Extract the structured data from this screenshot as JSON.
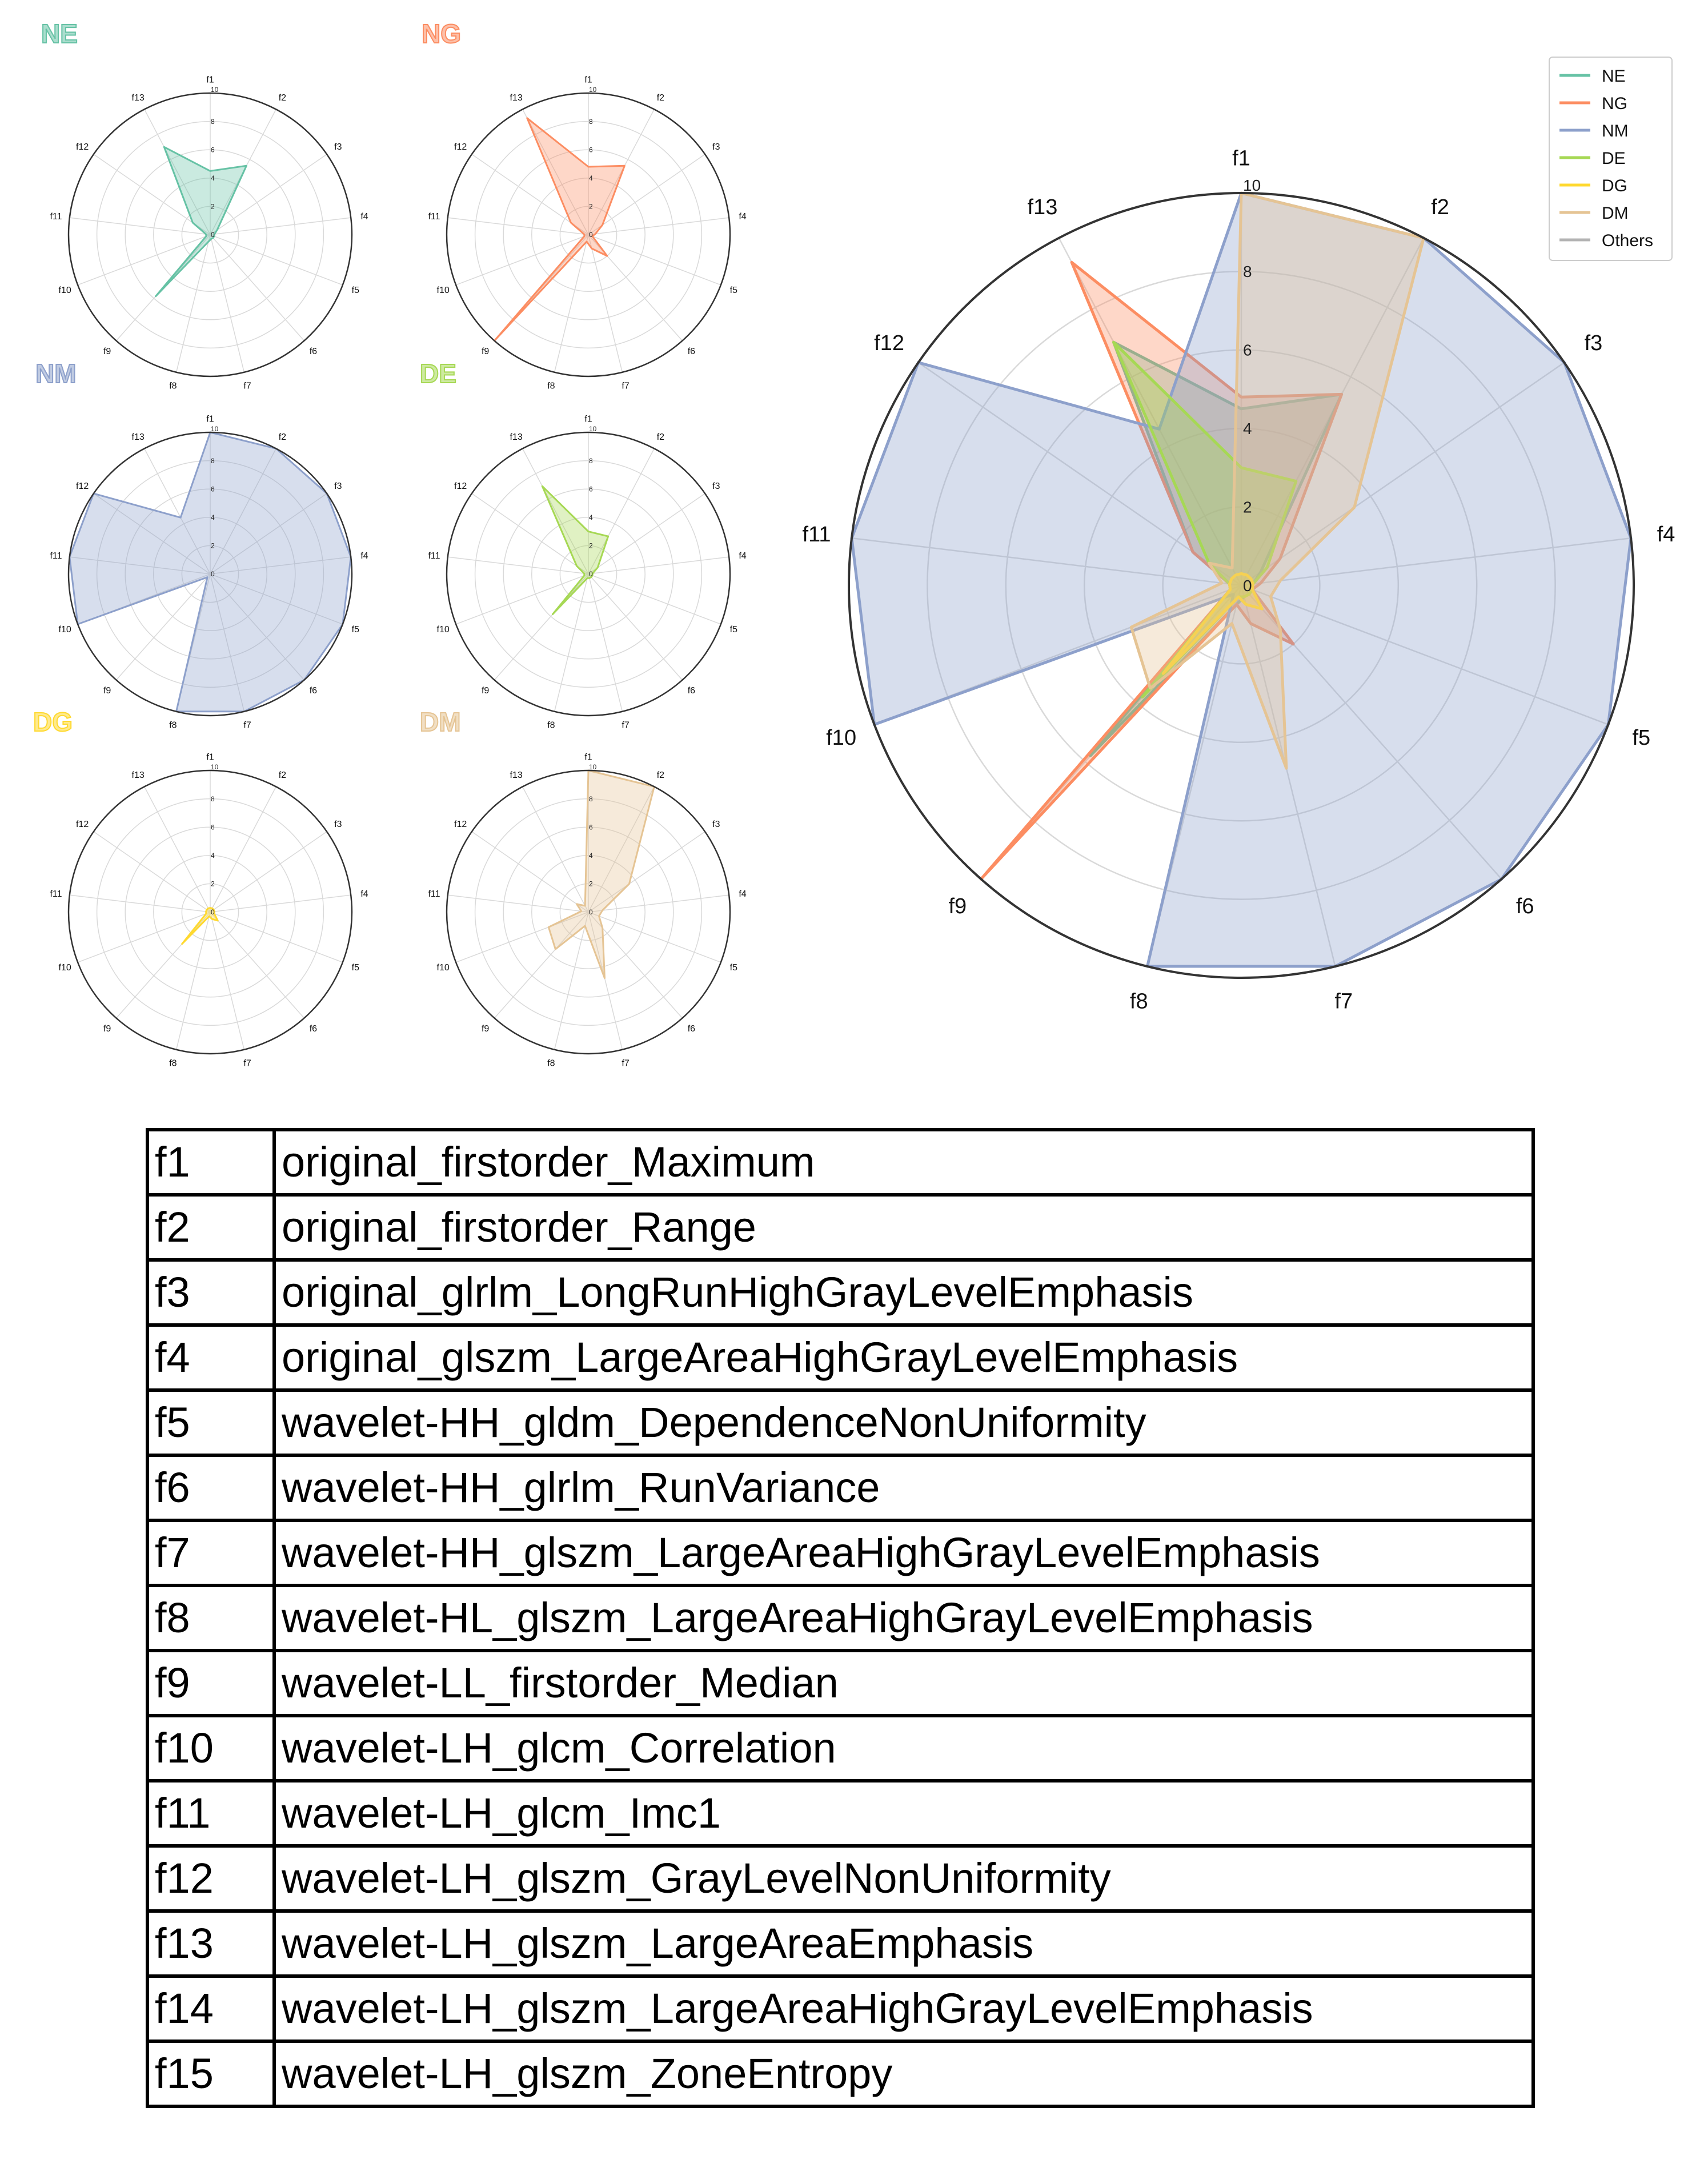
{
  "colors": {
    "NE": "#66c2a5",
    "NG": "#fc8d62",
    "NM": "#8da0cb",
    "DE": "#a6d854",
    "DG": "#ffd92f",
    "DM": "#e5c494",
    "Others": "#b3b3b3"
  },
  "chart_data": [
    {
      "type": "radar",
      "panel": "NE",
      "title": "NE",
      "axes": [
        "f1",
        "f2",
        "f3",
        "f4",
        "f5",
        "f6",
        "f7",
        "f8",
        "f9",
        "f10",
        "f11",
        "f12",
        "f13"
      ],
      "rticks": [
        "0",
        "2",
        "4",
        "6",
        "8",
        "10"
      ],
      "rlim": [
        0,
        10
      ],
      "series": [
        {
          "name": "NE",
          "values": [
            4.5,
            5.5,
            0.6,
            0.3,
            0.3,
            0.3,
            0.3,
            0.5,
            5.8,
            0.3,
            0.3,
            1.5,
            7.0
          ]
        }
      ]
    },
    {
      "type": "radar",
      "panel": "NG",
      "title": "NG",
      "axes": [
        "f1",
        "f2",
        "f3",
        "f4",
        "f5",
        "f6",
        "f7",
        "f8",
        "f9",
        "f10",
        "f11",
        "f12",
        "f13"
      ],
      "rticks": [
        "0",
        "2",
        "4",
        "6",
        "8",
        "10"
      ],
      "rlim": [
        0,
        10
      ],
      "series": [
        {
          "name": "NG",
          "values": [
            4.8,
            5.5,
            1.2,
            0.5,
            0.3,
            2.0,
            1.0,
            0.5,
            10.0,
            0.3,
            0.3,
            1.5,
            9.3
          ]
        }
      ]
    },
    {
      "type": "radar",
      "panel": "NM",
      "title": "NM",
      "axes": [
        "f1",
        "f2",
        "f3",
        "f4",
        "f5",
        "f6",
        "f7",
        "f8",
        "f9",
        "f10",
        "f11",
        "f12",
        "f13"
      ],
      "rticks": [
        "0",
        "2",
        "4",
        "6",
        "8",
        "10"
      ],
      "rlim": [
        0,
        10
      ],
      "series": [
        {
          "name": "NM",
          "values": [
            10,
            10,
            10,
            10,
            10,
            10,
            10,
            10,
            0.3,
            10,
            10,
            10,
            4.5
          ]
        }
      ]
    },
    {
      "type": "radar",
      "panel": "DE",
      "title": "DE",
      "axes": [
        "f1",
        "f2",
        "f3",
        "f4",
        "f5",
        "f6",
        "f7",
        "f8",
        "f9",
        "f10",
        "f11",
        "f12",
        "f13"
      ],
      "rticks": [
        "0",
        "2",
        "4",
        "6",
        "8",
        "10"
      ],
      "rlim": [
        0,
        10
      ],
      "series": [
        {
          "name": "DE",
          "values": [
            3.0,
            3.0,
            0.8,
            0.3,
            0.3,
            0.3,
            0.3,
            0.3,
            3.8,
            0.3,
            0.3,
            1.0,
            7.0
          ]
        }
      ]
    },
    {
      "type": "radar",
      "panel": "DG",
      "title": "DG",
      "axes": [
        "f1",
        "f2",
        "f3",
        "f4",
        "f5",
        "f6",
        "f7",
        "f8",
        "f9",
        "f10",
        "f11",
        "f12",
        "f13"
      ],
      "rticks": [
        "0",
        "2",
        "4",
        "6",
        "8",
        "10"
      ],
      "rlim": [
        0,
        10
      ],
      "series": [
        {
          "name": "DG",
          "values": [
            0.3,
            0.3,
            0.3,
            0.3,
            0.3,
            0.8,
            0.5,
            0.3,
            3.0,
            0.3,
            0.3,
            0.3,
            0.3
          ]
        }
      ]
    },
    {
      "type": "radar",
      "panel": "DM",
      "title": "DM",
      "axes": [
        "f1",
        "f2",
        "f3",
        "f4",
        "f5",
        "f6",
        "f7",
        "f8",
        "f9",
        "f10",
        "f11",
        "f12",
        "f13"
      ],
      "rticks": [
        "0",
        "2",
        "4",
        "6",
        "8",
        "10"
      ],
      "rlim": [
        0,
        10
      ],
      "series": [
        {
          "name": "DM",
          "values": [
            10,
            10,
            3.5,
            1.0,
            0.8,
            1.5,
            4.8,
            1.0,
            3.5,
            3.0,
            0.5,
            1.0,
            0.5
          ]
        }
      ]
    },
    {
      "type": "radar",
      "panel": "combined",
      "axes": [
        "f1",
        "f2",
        "f3",
        "f4",
        "f5",
        "f6",
        "f7",
        "f8",
        "f9",
        "f10",
        "f11",
        "f12",
        "f13"
      ],
      "rticks": [
        "0",
        "2",
        "4",
        "6",
        "8",
        "10"
      ],
      "rlim": [
        0,
        10
      ],
      "legend_position": "top-right",
      "legend": [
        "NE",
        "NG",
        "NM",
        "DE",
        "DG",
        "DM",
        "Others"
      ],
      "series": [
        {
          "name": "NE",
          "values": [
            4.5,
            5.5,
            0.6,
            0.3,
            0.3,
            0.3,
            0.3,
            0.5,
            5.8,
            0.3,
            0.3,
            1.5,
            7.0
          ]
        },
        {
          "name": "NG",
          "values": [
            4.8,
            5.5,
            1.2,
            0.5,
            0.3,
            2.0,
            1.0,
            0.5,
            10.0,
            0.3,
            0.3,
            1.5,
            9.3
          ]
        },
        {
          "name": "NM",
          "values": [
            10,
            10,
            10,
            10,
            10,
            10,
            10,
            10,
            0.3,
            10,
            10,
            10,
            4.5
          ]
        },
        {
          "name": "DE",
          "values": [
            3.0,
            3.0,
            0.8,
            0.3,
            0.3,
            0.3,
            0.3,
            0.3,
            3.8,
            0.3,
            0.3,
            1.0,
            7.0
          ]
        },
        {
          "name": "DG",
          "values": [
            0.3,
            0.3,
            0.3,
            0.3,
            0.3,
            0.8,
            0.5,
            0.3,
            3.0,
            0.3,
            0.3,
            0.3,
            0.3
          ]
        },
        {
          "name": "DM",
          "values": [
            10,
            10,
            3.5,
            1.0,
            0.8,
            1.5,
            4.8,
            1.0,
            3.5,
            3.0,
            0.5,
            1.0,
            0.5
          ]
        }
      ]
    }
  ],
  "feature_table": [
    {
      "code": "f1",
      "name": "original_firstorder_Maximum"
    },
    {
      "code": "f2",
      "name": "original_firstorder_Range"
    },
    {
      "code": "f3",
      "name": "original_glrlm_LongRunHighGrayLevelEmphasis"
    },
    {
      "code": "f4",
      "name": "original_glszm_LargeAreaHighGrayLevelEmphasis"
    },
    {
      "code": "f5",
      "name": "wavelet-HH_gldm_DependenceNonUniformity"
    },
    {
      "code": "f6",
      "name": "wavelet-HH_glrlm_RunVariance"
    },
    {
      "code": "f7",
      "name": "wavelet-HH_glszm_LargeAreaHighGrayLevelEmphasis"
    },
    {
      "code": "f8",
      "name": "wavelet-HL_glszm_LargeAreaHighGrayLevelEmphasis"
    },
    {
      "code": "f9",
      "name": "wavelet-LL_firstorder_Median"
    },
    {
      "code": "f10",
      "name": "wavelet-LH_glcm_Correlation"
    },
    {
      "code": "f11",
      "name": "wavelet-LH_glcm_Imc1"
    },
    {
      "code": "f12",
      "name": "wavelet-LH_glszm_GrayLevelNonUniformity"
    },
    {
      "code": "f13",
      "name": "wavelet-LH_glszm_LargeAreaEmphasis"
    },
    {
      "code": "f14",
      "name": "wavelet-LH_glszm_LargeAreaHighGrayLevelEmphasis"
    },
    {
      "code": "f15",
      "name": "wavelet-LH_glszm_ZoneEntropy"
    }
  ]
}
